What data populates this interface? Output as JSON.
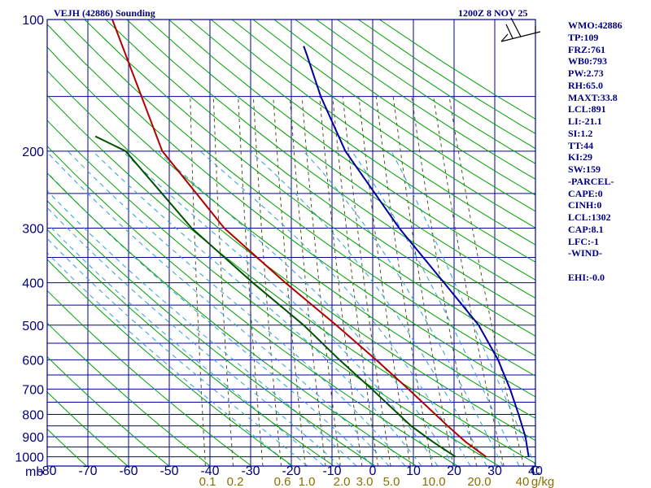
{
  "header": {
    "title": "VEJH (42886) Sounding",
    "datetime": "1200Z  8 NOV 25"
  },
  "stats": [
    "WMO:42886",
    "TP:109",
    "FRZ:761",
    "WB0:793",
    "PW:2.73",
    "RH:65.0",
    "MAXT:33.8",
    "LCL:891",
    "LI:-21.1",
    "SI:1.2",
    "TT:44",
    "KI:29",
    "SW:159",
    "-PARCEL-",
    "CAPE:0",
    "CINH:0",
    "LCL:1302",
    "CAP:8.1",
    "LFC:-1",
    "-WIND-",
    "",
    "EHI:-0.0"
  ],
  "colors": {
    "grid": "#0000a0",
    "dry_adiabat": "#00a000",
    "moist_adiabat": "#2a9fd6",
    "mixing_ratio": "#505020",
    "temperature": "#b00000",
    "dewpoint": "#005000",
    "parcel": "#0000a0",
    "text": "#000080",
    "mixing_label": "#8a7000"
  },
  "chart_data": {
    "type": "line",
    "diagram": "skew-T log-P",
    "xlabel": "",
    "ylabel": "mb",
    "pressure_ticks": [
      100,
      200,
      300,
      400,
      500,
      600,
      700,
      800,
      900,
      1000
    ],
    "isobars": [
      100,
      150,
      200,
      250,
      300,
      350,
      400,
      450,
      500,
      550,
      600,
      650,
      700,
      750,
      800,
      850,
      900,
      950,
      1000
    ],
    "temperature_ticks": [
      "-80",
      "-70",
      "-60",
      "-50",
      "-40",
      "-30",
      "-20",
      "-10",
      "0",
      "10",
      "20",
      "30",
      "40",
      "C"
    ],
    "mixing_ratio_labels": [
      "0.1",
      "0.2",
      "0.6",
      "1.0",
      "2.0",
      "3.0",
      "5.0",
      "10.0",
      "20.0",
      "40",
      "g/kg"
    ],
    "grid": true,
    "series": [
      {
        "key": "temperature",
        "points": [
          [
            1000,
            27.5
          ],
          [
            925,
            22
          ],
          [
            850,
            17
          ],
          [
            700,
            6
          ],
          [
            600,
            -3
          ],
          [
            500,
            -14
          ],
          [
            400,
            -28
          ],
          [
            300,
            -45
          ],
          [
            200,
            -63
          ],
          [
            100,
            -80
          ]
        ]
      },
      {
        "key": "dewpoint",
        "points": [
          [
            1000,
            20
          ],
          [
            925,
            14
          ],
          [
            850,
            8
          ],
          [
            700,
            -3
          ],
          [
            600,
            -12
          ],
          [
            500,
            -22
          ],
          [
            400,
            -36
          ],
          [
            300,
            -53
          ],
          [
            200,
            -72
          ],
          [
            185,
            -80
          ]
        ]
      },
      {
        "key": "parcel",
        "points": [
          [
            1000,
            38
          ],
          [
            900,
            36.5
          ],
          [
            800,
            34
          ],
          [
            700,
            31
          ],
          [
            600,
            27
          ],
          [
            500,
            21
          ],
          [
            400,
            11
          ],
          [
            300,
            -2
          ],
          [
            200,
            -18
          ],
          [
            150,
            -26
          ],
          [
            120,
            -31
          ],
          [
            115,
            -32
          ]
        ]
      }
    ]
  }
}
